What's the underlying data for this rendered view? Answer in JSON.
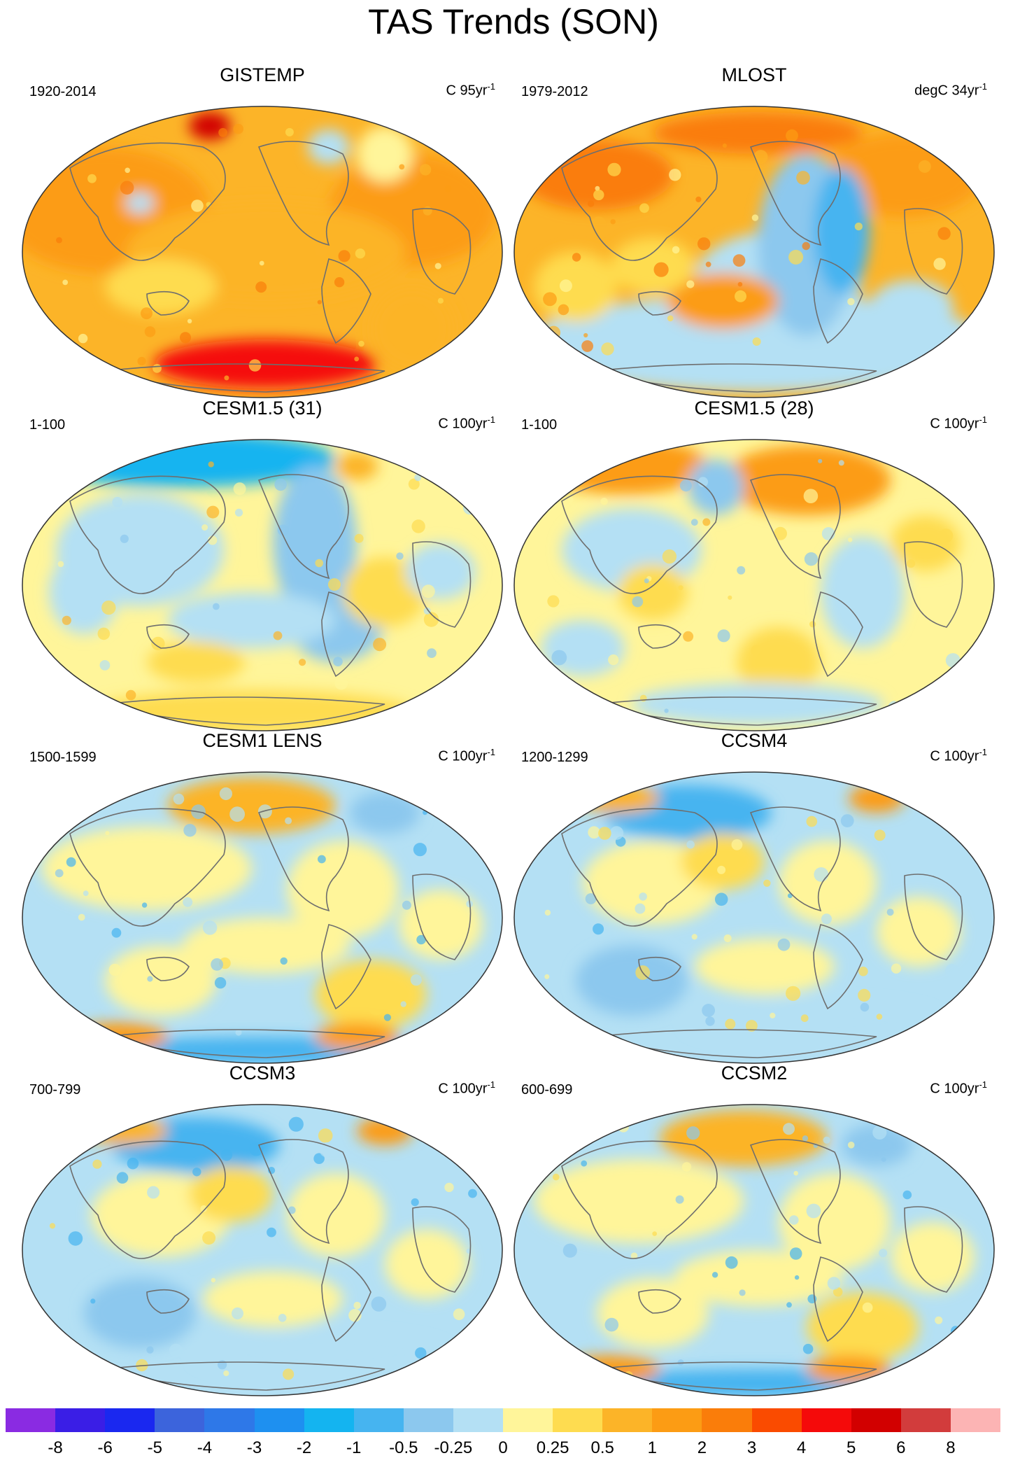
{
  "title": "TAS Trends (SON)",
  "panels": [
    {
      "name": "GISTEMP",
      "period": "1920-2014",
      "units_prefix": "C 95yr",
      "units_exp": "-1",
      "field": "warm"
    },
    {
      "name": "MLOST",
      "period": "1979-2012",
      "units_prefix": "degC 34yr",
      "units_exp": "-1",
      "field": "mlost"
    },
    {
      "name": "CESM1.5 (31)",
      "period": "1-100",
      "units_prefix": "C 100yr",
      "units_exp": "-1",
      "field": "cool"
    },
    {
      "name": "CESM1.5 (28)",
      "period": "1-100",
      "units_prefix": "C 100yr",
      "units_exp": "-1",
      "field": "mixwarm"
    },
    {
      "name": "CESM1 LENS",
      "period": "1500-1599",
      "units_prefix": "C 100yr",
      "units_exp": "-1",
      "field": "mix"
    },
    {
      "name": "CCSM4",
      "period": "1200-1299",
      "units_prefix": "C 100yr",
      "units_exp": "-1",
      "field": "mixcool"
    },
    {
      "name": "CCSM3",
      "period": "700-799",
      "units_prefix": "C 100yr",
      "units_exp": "-1",
      "field": "mixcool"
    },
    {
      "name": "CCSM2",
      "period": "600-699",
      "units_prefix": "C 100yr",
      "units_exp": "-1",
      "field": "mix"
    }
  ],
  "colorbar": {
    "labels": [
      "-8",
      "-6",
      "-5",
      "-4",
      "-3",
      "-2",
      "-1",
      "-0.5",
      "-0.25",
      "0",
      "0.25",
      "0.5",
      "1",
      "2",
      "3",
      "4",
      "5",
      "6",
      "8"
    ],
    "colors": [
      "#8a2be2",
      "#3a1ee6",
      "#1a28f0",
      "#3c64dc",
      "#2e78e8",
      "#1e90f0",
      "#14b4f0",
      "#46b4f0",
      "#8cc8ee",
      "#b4e0f4",
      "#fff59a",
      "#fedc50",
      "#fcb428",
      "#fc9c14",
      "#fa7d0a",
      "#fa4b00",
      "#f50a0a",
      "#d20000",
      "#d23c3c",
      "#fcb4b4"
    ]
  }
}
